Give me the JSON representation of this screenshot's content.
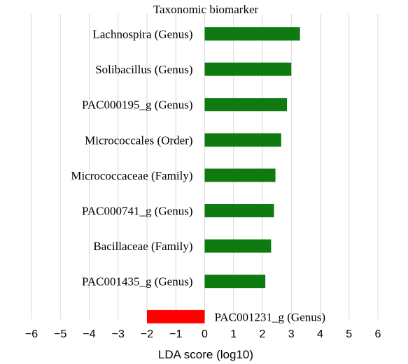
{
  "chart_data": {
    "type": "bar",
    "orientation": "horizontal",
    "title": "Taxonomic biomarker",
    "xlabel": "LDA score (log10)",
    "ylabel": "",
    "xlim": [
      -6,
      6
    ],
    "xticks": [
      -6,
      -5,
      -4,
      -3,
      -2,
      -1,
      0,
      1,
      2,
      3,
      4,
      5,
      6
    ],
    "grid": true,
    "categories": [
      "Lachnospira (Genus)",
      "Solibacillus (Genus)",
      "PAC000195_g (Genus)",
      "Micrococcales (Order)",
      "Micrococcaceae (Family)",
      "PAC000741_g (Genus)",
      "Bacillaceae (Family)",
      "PAC001435_g (Genus)",
      "PAC001231_g (Genus)"
    ],
    "values": [
      3.3,
      3.0,
      2.85,
      2.65,
      2.45,
      2.4,
      2.3,
      2.1,
      -2.0
    ],
    "colors": {
      "positive": "#0f7a0f",
      "negative": "#ff0000",
      "grid": "#d9d9d9"
    }
  }
}
